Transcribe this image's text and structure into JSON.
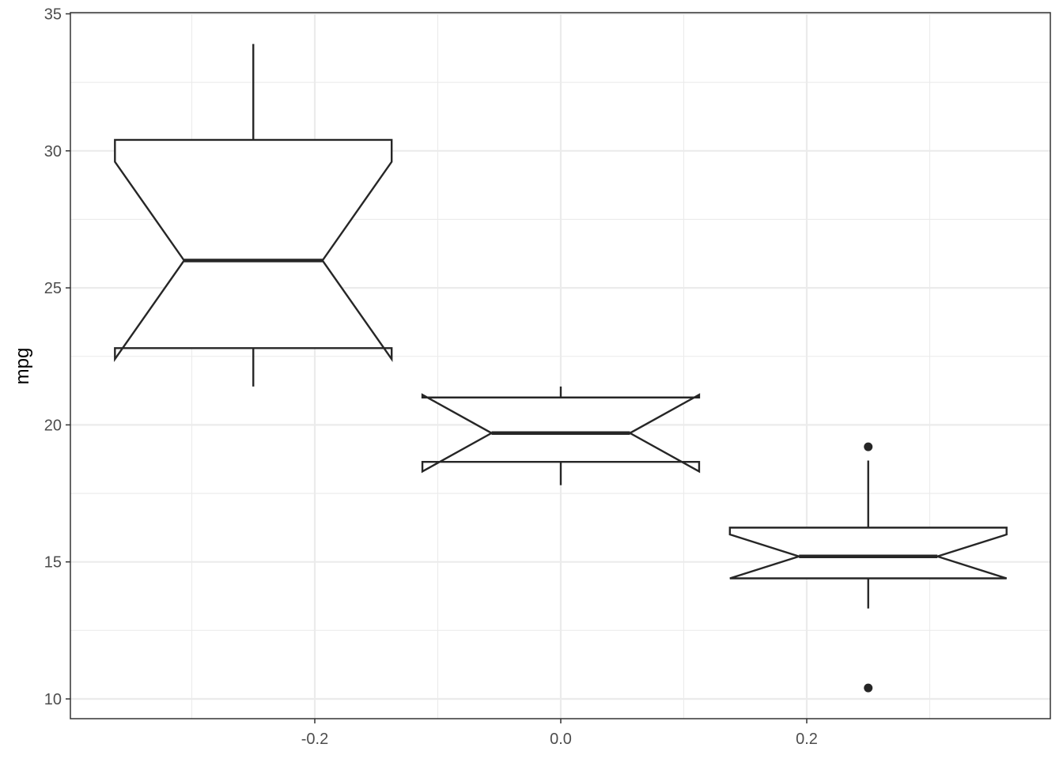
{
  "chart_data": {
    "type": "boxplot",
    "title": "",
    "xlabel": "",
    "ylabel": "mpg",
    "xlim": [
      -0.4,
      0.4
    ],
    "ylim": [
      9.25,
      35.1
    ],
    "x_ticks": [
      -0.2,
      0.0,
      0.2
    ],
    "x_tick_labels": [
      "-0.2",
      "0.0",
      "0.2"
    ],
    "y_ticks": [
      10,
      15,
      20,
      25,
      30,
      35
    ],
    "y_tick_labels": [
      "10",
      "15",
      "20",
      "25",
      "30",
      "35"
    ],
    "grid": true,
    "notched": true,
    "boxes": [
      {
        "x": -0.25,
        "width": 0.225,
        "whisker_low": 21.4,
        "q1": 22.8,
        "median": 26.0,
        "q3": 30.4,
        "whisker_high": 33.9,
        "notch_low": 22.4,
        "notch_high": 29.6,
        "outliers": []
      },
      {
        "x": 0.0,
        "width": 0.225,
        "whisker_low": 17.8,
        "q1": 18.65,
        "median": 19.7,
        "q3": 21.0,
        "whisker_high": 21.4,
        "notch_low": 18.3,
        "notch_high": 21.1,
        "outliers": []
      },
      {
        "x": 0.25,
        "width": 0.225,
        "whisker_low": 13.3,
        "q1": 14.4,
        "median": 15.2,
        "q3": 16.25,
        "whisker_high": 18.7,
        "notch_low": 14.4,
        "notch_high": 16.0,
        "outliers": [
          19.2,
          10.4
        ]
      }
    ]
  },
  "colors": {
    "box_line": "#262626",
    "grid": "#ebebeb",
    "panel_border": "#333333",
    "tick_label": "#4d4d4d"
  }
}
